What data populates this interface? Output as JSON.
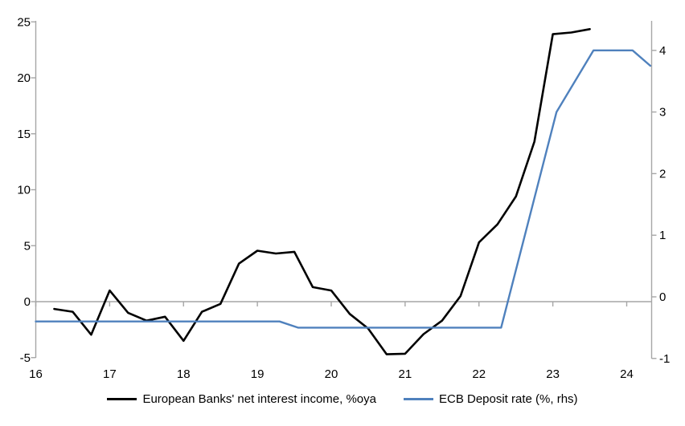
{
  "chart_data": {
    "type": "line",
    "title": "",
    "xlabel": "",
    "ylabel_left": "",
    "ylabel_right": "",
    "grid": "zero-line-only",
    "legend_position": "bottom",
    "x_axis": {
      "ticks": [
        16,
        17,
        18,
        19,
        20,
        21,
        22,
        23,
        24
      ],
      "range": [
        16,
        24.34
      ]
    },
    "left_axis": {
      "ticks": [
        -5,
        0,
        5,
        10,
        15,
        20,
        25
      ],
      "range": [
        -5,
        25
      ]
    },
    "right_axis": {
      "ticks": [
        -1,
        0,
        1,
        2,
        3,
        4
      ],
      "range": [
        -1,
        4.46
      ]
    },
    "series": [
      {
        "name": "European Banks' net interest income, %oya",
        "axis": "left",
        "color": "#000000",
        "width": 2.6,
        "points": [
          [
            16.25,
            -0.65
          ],
          [
            16.5,
            -0.9
          ],
          [
            16.75,
            -2.95
          ],
          [
            17.0,
            1.0
          ],
          [
            17.25,
            -1.0
          ],
          [
            17.5,
            -1.7
          ],
          [
            17.75,
            -1.35
          ],
          [
            18.0,
            -3.5
          ],
          [
            18.25,
            -0.9
          ],
          [
            18.5,
            -0.2
          ],
          [
            18.75,
            3.4
          ],
          [
            19.0,
            4.55
          ],
          [
            19.25,
            4.3
          ],
          [
            19.5,
            4.45
          ],
          [
            19.75,
            1.3
          ],
          [
            20.0,
            1.0
          ],
          [
            20.25,
            -1.1
          ],
          [
            20.5,
            -2.4
          ],
          [
            20.75,
            -4.7
          ],
          [
            21.0,
            -4.65
          ],
          [
            21.25,
            -2.9
          ],
          [
            21.5,
            -1.7
          ],
          [
            21.75,
            0.5
          ],
          [
            22.0,
            5.3
          ],
          [
            22.25,
            6.9
          ],
          [
            22.5,
            9.4
          ],
          [
            22.75,
            14.3
          ],
          [
            23.0,
            23.9
          ],
          [
            23.25,
            24.05
          ],
          [
            23.5,
            24.35
          ]
        ]
      },
      {
        "name": "ECB Deposit rate (%, rhs)",
        "axis": "right",
        "color": "#4F81BD",
        "width": 2.4,
        "points": [
          [
            16.0,
            -0.4
          ],
          [
            19.3,
            -0.4
          ],
          [
            19.55,
            -0.5
          ],
          [
            22.3,
            -0.5
          ],
          [
            23.05,
            3.0
          ],
          [
            23.55,
            4.0
          ],
          [
            24.08,
            4.0
          ],
          [
            24.32,
            3.75
          ]
        ]
      }
    ]
  },
  "legend": {
    "items": [
      {
        "label": "European Banks' net interest income, %oya",
        "color": "#000000"
      },
      {
        "label": "ECB Deposit rate (%, rhs)",
        "color": "#4F81BD"
      }
    ]
  },
  "colors": {
    "axis_line": "#A6A6A6",
    "zero_line": "#A6A6A6",
    "tick_text": "#000000",
    "background": "#FFFFFF"
  }
}
